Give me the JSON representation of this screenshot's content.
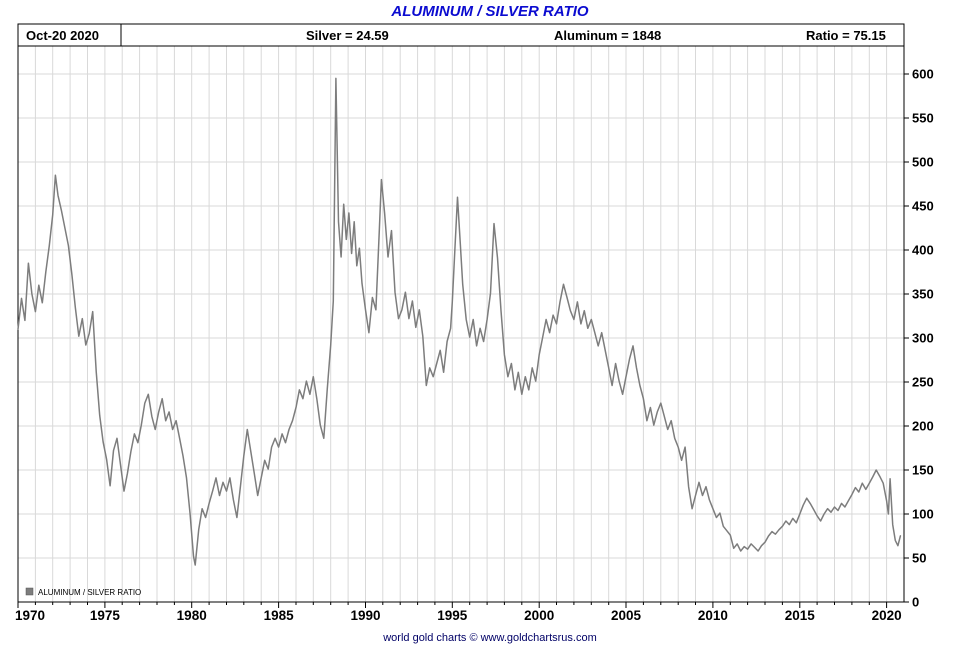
{
  "title": "ALUMINUM / SILVER RATIO",
  "header": {
    "date": "Oct-20  2020",
    "silver": "Silver = 24.59",
    "aluminum": "Aluminum = 1848",
    "ratio": "Ratio = 75.15"
  },
  "legend_label": "ALUMINUM / SILVER RATIO",
  "footer": "world gold charts © www.goldchartsrus.com",
  "colors": {
    "title": "#0b0bd0",
    "line": "#7d7d7d",
    "grid": "#d9d9d9",
    "axis": "#000000",
    "footer": "#000066"
  },
  "chart_data": {
    "type": "line",
    "title": "ALUMINUM / SILVER RATIO",
    "xlabel": "",
    "ylabel": "",
    "xlim": [
      1970,
      2021
    ],
    "ylim": [
      0,
      600
    ],
    "x_ticks": [
      1970,
      1975,
      1980,
      1985,
      1990,
      1995,
      2000,
      2005,
      2010,
      2015,
      2020
    ],
    "y_ticks": [
      0,
      50,
      100,
      150,
      200,
      250,
      300,
      350,
      400,
      450,
      500,
      550,
      600
    ],
    "grid": "on",
    "legend_position": "bottom-left",
    "last_point": {
      "date": "Oct-20 2020",
      "silver": 24.59,
      "aluminum": 1848,
      "ratio": 75.15
    },
    "series": [
      {
        "name": "ALUMINUM / SILVER RATIO",
        "color": "#7d7d7d",
        "points": [
          [
            1970.0,
            310
          ],
          [
            1970.2,
            345
          ],
          [
            1970.4,
            320
          ],
          [
            1970.6,
            385
          ],
          [
            1970.8,
            350
          ],
          [
            1971.0,
            330
          ],
          [
            1971.2,
            360
          ],
          [
            1971.4,
            340
          ],
          [
            1971.6,
            375
          ],
          [
            1971.8,
            405
          ],
          [
            1972.0,
            440
          ],
          [
            1972.15,
            485
          ],
          [
            1972.3,
            462
          ],
          [
            1972.5,
            445
          ],
          [
            1972.7,
            425
          ],
          [
            1972.9,
            405
          ],
          [
            1973.1,
            372
          ],
          [
            1973.3,
            335
          ],
          [
            1973.5,
            302
          ],
          [
            1973.7,
            322
          ],
          [
            1973.9,
            292
          ],
          [
            1974.1,
            305
          ],
          [
            1974.3,
            330
          ],
          [
            1974.5,
            262
          ],
          [
            1974.7,
            212
          ],
          [
            1974.9,
            182
          ],
          [
            1975.1,
            162
          ],
          [
            1975.3,
            132
          ],
          [
            1975.5,
            172
          ],
          [
            1975.7,
            186
          ],
          [
            1975.9,
            156
          ],
          [
            1976.1,
            126
          ],
          [
            1976.3,
            146
          ],
          [
            1976.5,
            171
          ],
          [
            1976.7,
            191
          ],
          [
            1976.9,
            181
          ],
          [
            1977.1,
            201
          ],
          [
            1977.3,
            226
          ],
          [
            1977.5,
            236
          ],
          [
            1977.7,
            211
          ],
          [
            1977.9,
            196
          ],
          [
            1978.1,
            216
          ],
          [
            1978.3,
            231
          ],
          [
            1978.5,
            206
          ],
          [
            1978.7,
            216
          ],
          [
            1978.9,
            196
          ],
          [
            1979.1,
            206
          ],
          [
            1979.3,
            186
          ],
          [
            1979.5,
            166
          ],
          [
            1979.7,
            141
          ],
          [
            1979.9,
            101
          ],
          [
            1980.1,
            52
          ],
          [
            1980.2,
            42
          ],
          [
            1980.4,
            82
          ],
          [
            1980.6,
            106
          ],
          [
            1980.8,
            96
          ],
          [
            1981.0,
            112
          ],
          [
            1981.2,
            126
          ],
          [
            1981.4,
            141
          ],
          [
            1981.6,
            121
          ],
          [
            1981.8,
            136
          ],
          [
            1982.0,
            126
          ],
          [
            1982.2,
            141
          ],
          [
            1982.4,
            116
          ],
          [
            1982.6,
            96
          ],
          [
            1982.8,
            131
          ],
          [
            1983.0,
            166
          ],
          [
            1983.2,
            196
          ],
          [
            1983.4,
            171
          ],
          [
            1983.6,
            146
          ],
          [
            1983.8,
            121
          ],
          [
            1984.0,
            141
          ],
          [
            1984.2,
            161
          ],
          [
            1984.4,
            151
          ],
          [
            1984.6,
            176
          ],
          [
            1984.8,
            186
          ],
          [
            1985.0,
            176
          ],
          [
            1985.2,
            191
          ],
          [
            1985.4,
            181
          ],
          [
            1985.6,
            196
          ],
          [
            1985.8,
            206
          ],
          [
            1986.0,
            221
          ],
          [
            1986.2,
            241
          ],
          [
            1986.4,
            231
          ],
          [
            1986.6,
            251
          ],
          [
            1986.8,
            236
          ],
          [
            1987.0,
            256
          ],
          [
            1987.2,
            231
          ],
          [
            1987.4,
            201
          ],
          [
            1987.6,
            186
          ],
          [
            1987.8,
            241
          ],
          [
            1988.0,
            292
          ],
          [
            1988.15,
            342
          ],
          [
            1988.3,
            595
          ],
          [
            1988.45,
            432
          ],
          [
            1988.6,
            392
          ],
          [
            1988.75,
            452
          ],
          [
            1988.9,
            412
          ],
          [
            1989.05,
            442
          ],
          [
            1989.2,
            396
          ],
          [
            1989.35,
            432
          ],
          [
            1989.5,
            382
          ],
          [
            1989.65,
            402
          ],
          [
            1989.8,
            362
          ],
          [
            1990.0,
            332
          ],
          [
            1990.2,
            306
          ],
          [
            1990.4,
            346
          ],
          [
            1990.6,
            332
          ],
          [
            1990.8,
            422
          ],
          [
            1990.92,
            480
          ],
          [
            1991.1,
            442
          ],
          [
            1991.3,
            392
          ],
          [
            1991.5,
            422
          ],
          [
            1991.7,
            352
          ],
          [
            1991.9,
            322
          ],
          [
            1992.1,
            332
          ],
          [
            1992.3,
            352
          ],
          [
            1992.5,
            322
          ],
          [
            1992.7,
            342
          ],
          [
            1992.9,
            312
          ],
          [
            1993.1,
            332
          ],
          [
            1993.3,
            302
          ],
          [
            1993.5,
            246
          ],
          [
            1993.7,
            266
          ],
          [
            1993.9,
            256
          ],
          [
            1994.1,
            271
          ],
          [
            1994.3,
            286
          ],
          [
            1994.5,
            261
          ],
          [
            1994.7,
            296
          ],
          [
            1994.9,
            311
          ],
          [
            1995.0,
            341
          ],
          [
            1995.15,
            401
          ],
          [
            1995.3,
            460
          ],
          [
            1995.45,
            411
          ],
          [
            1995.6,
            361
          ],
          [
            1995.8,
            321
          ],
          [
            1996.0,
            301
          ],
          [
            1996.2,
            321
          ],
          [
            1996.4,
            291
          ],
          [
            1996.6,
            311
          ],
          [
            1996.8,
            296
          ],
          [
            1997.0,
            321
          ],
          [
            1997.2,
            351
          ],
          [
            1997.4,
            430
          ],
          [
            1997.6,
            391
          ],
          [
            1997.8,
            331
          ],
          [
            1998.0,
            281
          ],
          [
            1998.2,
            256
          ],
          [
            1998.4,
            271
          ],
          [
            1998.6,
            241
          ],
          [
            1998.8,
            261
          ],
          [
            1999.0,
            236
          ],
          [
            1999.2,
            256
          ],
          [
            1999.4,
            241
          ],
          [
            1999.6,
            266
          ],
          [
            1999.8,
            251
          ],
          [
            2000.0,
            281
          ],
          [
            2000.2,
            301
          ],
          [
            2000.4,
            321
          ],
          [
            2000.6,
            306
          ],
          [
            2000.8,
            326
          ],
          [
            2001.0,
            316
          ],
          [
            2001.2,
            341
          ],
          [
            2001.4,
            361
          ],
          [
            2001.6,
            346
          ],
          [
            2001.8,
            331
          ],
          [
            2002.0,
            321
          ],
          [
            2002.2,
            341
          ],
          [
            2002.4,
            316
          ],
          [
            2002.6,
            331
          ],
          [
            2002.8,
            311
          ],
          [
            2003.0,
            321
          ],
          [
            2003.2,
            306
          ],
          [
            2003.4,
            291
          ],
          [
            2003.6,
            306
          ],
          [
            2003.8,
            286
          ],
          [
            2004.0,
            266
          ],
          [
            2004.2,
            246
          ],
          [
            2004.4,
            271
          ],
          [
            2004.6,
            251
          ],
          [
            2004.8,
            236
          ],
          [
            2005.0,
            256
          ],
          [
            2005.2,
            276
          ],
          [
            2005.4,
            291
          ],
          [
            2005.6,
            266
          ],
          [
            2005.8,
            246
          ],
          [
            2006.0,
            231
          ],
          [
            2006.2,
            206
          ],
          [
            2006.4,
            221
          ],
          [
            2006.6,
            201
          ],
          [
            2006.8,
            216
          ],
          [
            2007.0,
            226
          ],
          [
            2007.2,
            211
          ],
          [
            2007.4,
            196
          ],
          [
            2007.6,
            206
          ],
          [
            2007.8,
            186
          ],
          [
            2008.0,
            176
          ],
          [
            2008.2,
            161
          ],
          [
            2008.4,
            176
          ],
          [
            2008.6,
            131
          ],
          [
            2008.8,
            106
          ],
          [
            2009.0,
            121
          ],
          [
            2009.2,
            136
          ],
          [
            2009.4,
            121
          ],
          [
            2009.6,
            131
          ],
          [
            2009.8,
            116
          ],
          [
            2010.0,
            106
          ],
          [
            2010.2,
            96
          ],
          [
            2010.4,
            101
          ],
          [
            2010.6,
            86
          ],
          [
            2010.8,
            81
          ],
          [
            2011.0,
            76
          ],
          [
            2011.2,
            61
          ],
          [
            2011.4,
            66
          ],
          [
            2011.6,
            58
          ],
          [
            2011.8,
            63
          ],
          [
            2012.0,
            60
          ],
          [
            2012.2,
            66
          ],
          [
            2012.4,
            62
          ],
          [
            2012.6,
            58
          ],
          [
            2012.8,
            64
          ],
          [
            2013.0,
            68
          ],
          [
            2013.2,
            75
          ],
          [
            2013.4,
            80
          ],
          [
            2013.6,
            77
          ],
          [
            2013.8,
            82
          ],
          [
            2014.0,
            86
          ],
          [
            2014.2,
            92
          ],
          [
            2014.4,
            88
          ],
          [
            2014.6,
            95
          ],
          [
            2014.8,
            90
          ],
          [
            2015.0,
            100
          ],
          [
            2015.2,
            110
          ],
          [
            2015.4,
            118
          ],
          [
            2015.6,
            112
          ],
          [
            2015.8,
            105
          ],
          [
            2016.0,
            98
          ],
          [
            2016.2,
            92
          ],
          [
            2016.4,
            100
          ],
          [
            2016.6,
            106
          ],
          [
            2016.8,
            102
          ],
          [
            2017.0,
            108
          ],
          [
            2017.2,
            104
          ],
          [
            2017.4,
            112
          ],
          [
            2017.6,
            108
          ],
          [
            2017.8,
            115
          ],
          [
            2018.0,
            122
          ],
          [
            2018.2,
            130
          ],
          [
            2018.4,
            125
          ],
          [
            2018.6,
            135
          ],
          [
            2018.8,
            128
          ],
          [
            2019.0,
            135
          ],
          [
            2019.2,
            142
          ],
          [
            2019.4,
            150
          ],
          [
            2019.6,
            143
          ],
          [
            2019.8,
            135
          ],
          [
            2020.0,
            115
          ],
          [
            2020.1,
            100
          ],
          [
            2020.2,
            140
          ],
          [
            2020.35,
            88
          ],
          [
            2020.5,
            70
          ],
          [
            2020.65,
            64
          ],
          [
            2020.79,
            75.15
          ]
        ]
      }
    ]
  }
}
